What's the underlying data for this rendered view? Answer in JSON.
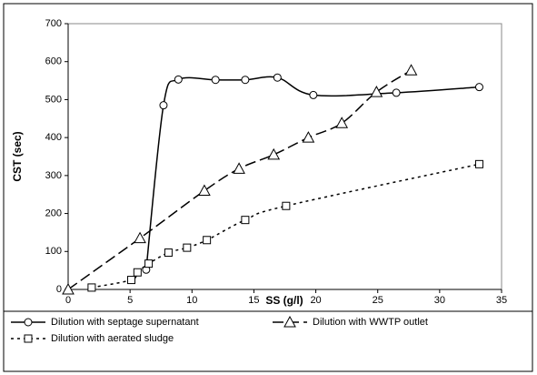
{
  "chart_data": {
    "type": "line",
    "x_label": "SS (g/l)",
    "y_label": "CST (sec)",
    "xlim": [
      0,
      35
    ],
    "xticks": [
      0,
      5,
      10,
      15,
      20,
      25,
      30,
      35
    ],
    "ylim": [
      0,
      700
    ],
    "yticks": [
      0,
      100,
      200,
      300,
      400,
      500,
      600,
      700
    ],
    "grid": false,
    "legend": "bottom",
    "series": [
      {
        "name": "Dilution with septage supernatant",
        "color": "#000000",
        "marker": "circle",
        "dash": "solid",
        "smooth": true,
        "x": [
          6.3,
          7.7,
          8.9,
          11.9,
          14.3,
          16.9,
          19.8,
          26.5,
          33.2
        ],
        "values": [
          52,
          485,
          553,
          552,
          552,
          558,
          512,
          518,
          533
        ]
      },
      {
        "name": "Dilution with WWTP outlet",
        "color": "#000000",
        "marker": "triangle",
        "dash": "dashed",
        "smooth": true,
        "x": [
          0,
          5.8,
          11,
          13.8,
          16.6,
          19.4,
          22.1,
          24.9,
          27.7
        ],
        "values": [
          0,
          135,
          260,
          318,
          355,
          400,
          438,
          520,
          577
        ]
      },
      {
        "name": "Dilution with aerated sludge",
        "color": "#000000",
        "marker": "square",
        "dash": "dotted",
        "smooth": true,
        "x": [
          1.9,
          5.1,
          5.6,
          6.5,
          8.1,
          9.6,
          11.2,
          14.3,
          17.6,
          33.2
        ],
        "values": [
          5,
          25,
          45,
          68,
          97,
          110,
          130,
          183,
          220,
          330
        ]
      }
    ]
  }
}
